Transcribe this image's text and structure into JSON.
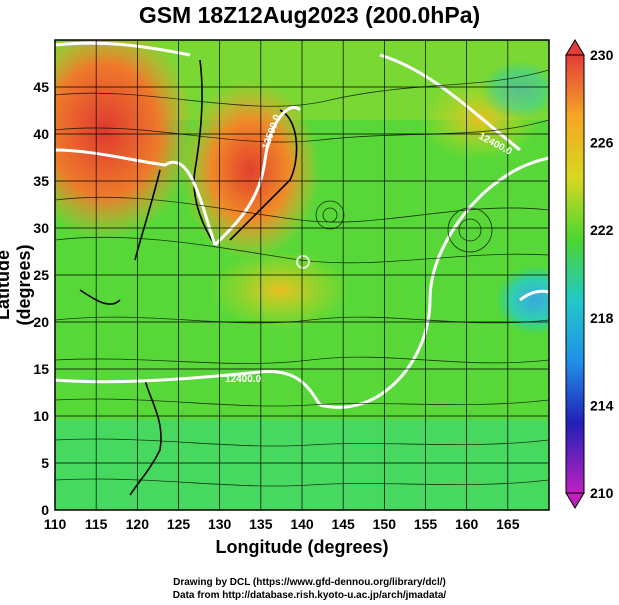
{
  "title": "GSM 18Z12Aug2023 (200.0hPa)",
  "xlabel": "Longitude (degrees)",
  "ylabel": "Latitude  (degrees)",
  "x_ticks": [
    "110",
    "115",
    "120",
    "125",
    "130",
    "135",
    "140",
    "145",
    "150",
    "155",
    "160",
    "165"
  ],
  "y_ticks": [
    "0",
    "5",
    "10",
    "15",
    "20",
    "25",
    "30",
    "35",
    "40",
    "45"
  ],
  "colorbar": {
    "ticks": [
      "230",
      "226",
      "222",
      "218",
      "214",
      "210"
    ],
    "colors": [
      "#e43c3c",
      "#f5a623",
      "#d8d820",
      "#4cd630",
      "#22c8c8",
      "#2090e8",
      "#2020b8",
      "#c020c0"
    ]
  },
  "contour_labels": [
    "12400.0",
    "12400.0",
    "12500.0"
  ],
  "credit_line1": "Drawing by DCL (https://www.gfd-dennou.org/library/dcl/)",
  "credit_line2": "Data from http://database.rish.kyoto-u.ac.jp/arch/jmadata/",
  "chart_data": {
    "type": "heatmap",
    "title": "GSM 18Z12Aug2023 (200.0hPa)",
    "xlabel": "Longitude (degrees)",
    "ylabel": "Latitude  (degrees)",
    "xlim": [
      110,
      170
    ],
    "ylim": [
      0,
      50
    ],
    "colorbar_range": [
      210,
      230
    ],
    "colorbar_ticks": [
      230,
      226,
      222,
      218,
      214,
      210
    ],
    "contour_labels": [
      "12400.0",
      "12400.0",
      "12500.0"
    ],
    "grid": true
  }
}
